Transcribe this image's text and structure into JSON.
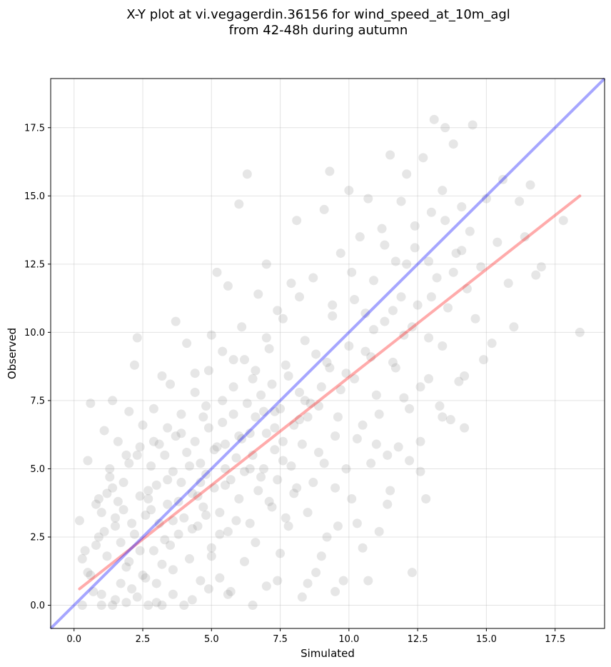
{
  "chart_data": {
    "type": "scatter",
    "title_line1": "X-Y plot at vi.vegagerdin.36156 for wind_speed_at_10m_agl",
    "title_line2": "from 42-48h during autumn",
    "xlabel": "Simulated",
    "ylabel": "Observed",
    "xlim": [
      -0.85,
      19.3
    ],
    "ylim": [
      -0.85,
      19.3
    ],
    "xticks": [
      0.0,
      2.5,
      5.0,
      7.5,
      10.0,
      12.5,
      15.0,
      17.5
    ],
    "yticks": [
      0.0,
      2.5,
      5.0,
      7.5,
      10.0,
      12.5,
      15.0,
      17.5
    ],
    "xtick_labels": [
      "0.0",
      "2.5",
      "5.0",
      "7.5",
      "10.0",
      "12.5",
      "15.0",
      "17.5"
    ],
    "ytick_labels": [
      "0.0",
      "2.5",
      "5.0",
      "7.5",
      "10.0",
      "12.5",
      "15.0",
      "17.5"
    ],
    "grid": true,
    "point_color": "#808080",
    "identity_line_color": "#0000ff",
    "fit_line_color": "#ff0000",
    "identity_line": {
      "x": [
        -0.85,
        19.3
      ],
      "y": [
        -0.85,
        19.3
      ]
    },
    "fit_line": {
      "x": [
        0.2,
        18.4
      ],
      "y": [
        0.6,
        15.0
      ]
    },
    "points": [
      [
        0.2,
        3.1
      ],
      [
        0.3,
        1.7
      ],
      [
        0.4,
        2.0
      ],
      [
        0.5,
        5.3
      ],
      [
        0.6,
        7.4
      ],
      [
        0.6,
        1.1
      ],
      [
        0.8,
        3.7
      ],
      [
        0.9,
        2.5
      ],
      [
        1.0,
        0.4
      ],
      [
        1.1,
        6.4
      ],
      [
        1.2,
        4.1
      ],
      [
        1.3,
        5.0
      ],
      [
        1.4,
        7.5
      ],
      [
        1.5,
        0.2
      ],
      [
        1.5,
        3.2
      ],
      [
        1.6,
        6.0
      ],
      [
        1.7,
        2.3
      ],
      [
        1.8,
        4.5
      ],
      [
        1.9,
        1.4
      ],
      [
        2.0,
        7.1
      ],
      [
        2.1,
        3.0
      ],
      [
        2.2,
        8.8
      ],
      [
        2.3,
        5.5
      ],
      [
        2.3,
        9.8
      ],
      [
        2.4,
        2.0
      ],
      [
        2.5,
        6.6
      ],
      [
        2.6,
        1.0
      ],
      [
        2.7,
        4.2
      ],
      [
        2.8,
        3.5
      ],
      [
        2.9,
        7.2
      ],
      [
        3.0,
        0.8
      ],
      [
        3.1,
        5.9
      ],
      [
        3.2,
        8.4
      ],
      [
        3.3,
        2.4
      ],
      [
        3.4,
        4.6
      ],
      [
        3.5,
        8.1
      ],
      [
        3.6,
        1.3
      ],
      [
        3.7,
        10.4
      ],
      [
        3.8,
        3.8
      ],
      [
        3.9,
        6.3
      ],
      [
        4.0,
        0.0
      ],
      [
        4.1,
        9.6
      ],
      [
        4.2,
        5.1
      ],
      [
        4.3,
        2.8
      ],
      [
        4.4,
        7.8
      ],
      [
        4.5,
        4.0
      ],
      [
        4.6,
        0.9
      ],
      [
        4.7,
        6.9
      ],
      [
        4.8,
        3.3
      ],
      [
        4.9,
        8.6
      ],
      [
        5.0,
        1.8
      ],
      [
        5.0,
        9.9
      ],
      [
        5.1,
        5.7
      ],
      [
        5.2,
        12.2
      ],
      [
        5.3,
        2.6
      ],
      [
        5.4,
        7.5
      ],
      [
        5.5,
        4.4
      ],
      [
        5.6,
        11.7
      ],
      [
        5.7,
        0.5
      ],
      [
        5.8,
        9.0
      ],
      [
        5.9,
        3.1
      ],
      [
        6.0,
        6.2
      ],
      [
        6.0,
        14.7
      ],
      [
        6.1,
        10.2
      ],
      [
        6.2,
        1.6
      ],
      [
        6.3,
        15.8
      ],
      [
        6.4,
        5.0
      ],
      [
        6.5,
        8.3
      ],
      [
        6.6,
        2.3
      ],
      [
        6.7,
        11.4
      ],
      [
        6.8,
        4.7
      ],
      [
        6.9,
        7.1
      ],
      [
        7.0,
        0.7
      ],
      [
        7.0,
        12.5
      ],
      [
        7.1,
        9.4
      ],
      [
        7.2,
        3.6
      ],
      [
        7.3,
        6.5
      ],
      [
        7.4,
        10.8
      ],
      [
        7.5,
        1.9
      ],
      [
        7.6,
        5.3
      ],
      [
        7.7,
        8.8
      ],
      [
        7.8,
        2.9
      ],
      [
        7.9,
        11.8
      ],
      [
        8.0,
        4.1
      ],
      [
        8.1,
        14.1
      ],
      [
        8.2,
        6.8
      ],
      [
        8.3,
        0.3
      ],
      [
        8.4,
        9.7
      ],
      [
        8.5,
        3.4
      ],
      [
        8.6,
        7.4
      ],
      [
        8.7,
        12.0
      ],
      [
        8.8,
        1.2
      ],
      [
        8.9,
        5.6
      ],
      [
        9.0,
        8.0
      ],
      [
        9.1,
        14.5
      ],
      [
        9.2,
        2.5
      ],
      [
        9.3,
        15.9
      ],
      [
        9.4,
        10.6
      ],
      [
        9.5,
        4.3
      ],
      [
        9.6,
        6.9
      ],
      [
        9.7,
        12.9
      ],
      [
        9.8,
        0.9
      ],
      [
        9.9,
        8.5
      ],
      [
        10.0,
        15.2
      ],
      [
        10.1,
        3.9
      ],
      [
        10.2,
        11.2
      ],
      [
        10.3,
        6.1
      ],
      [
        10.4,
        13.5
      ],
      [
        10.5,
        2.1
      ],
      [
        10.6,
        9.3
      ],
      [
        10.7,
        14.9
      ],
      [
        10.8,
        5.2
      ],
      [
        10.9,
        11.9
      ],
      [
        11.0,
        7.7
      ],
      [
        11.1,
        2.7
      ],
      [
        11.2,
        13.8
      ],
      [
        11.3,
        10.4
      ],
      [
        11.4,
        3.7
      ],
      [
        11.5,
        16.5
      ],
      [
        11.6,
        8.9
      ],
      [
        11.7,
        12.6
      ],
      [
        11.8,
        5.8
      ],
      [
        11.9,
        14.8
      ],
      [
        12.0,
        9.9
      ],
      [
        12.1,
        15.8
      ],
      [
        12.2,
        7.2
      ],
      [
        12.3,
        1.2
      ],
      [
        12.4,
        13.1
      ],
      [
        12.5,
        11.0
      ],
      [
        12.6,
        6.0
      ],
      [
        12.7,
        16.4
      ],
      [
        12.8,
        3.9
      ],
      [
        12.9,
        9.8
      ],
      [
        13.0,
        14.4
      ],
      [
        13.1,
        17.8
      ],
      [
        13.2,
        12.0
      ],
      [
        13.3,
        7.3
      ],
      [
        13.4,
        15.2
      ],
      [
        13.5,
        17.5
      ],
      [
        13.6,
        10.9
      ],
      [
        13.7,
        6.8
      ],
      [
        13.8,
        16.9
      ],
      [
        13.9,
        12.9
      ],
      [
        14.0,
        8.2
      ],
      [
        14.1,
        14.6
      ],
      [
        14.2,
        6.5
      ],
      [
        14.3,
        11.6
      ],
      [
        14.4,
        13.7
      ],
      [
        14.5,
        17.6
      ],
      [
        14.6,
        10.5
      ],
      [
        14.8,
        12.4
      ],
      [
        14.9,
        9.0
      ],
      [
        15.0,
        14.9
      ],
      [
        15.2,
        9.6
      ],
      [
        15.4,
        13.3
      ],
      [
        15.6,
        15.6
      ],
      [
        15.8,
        11.8
      ],
      [
        16.0,
        10.2
      ],
      [
        16.2,
        14.8
      ],
      [
        16.4,
        13.5
      ],
      [
        16.6,
        15.4
      ],
      [
        16.8,
        12.1
      ],
      [
        17.0,
        12.4
      ],
      [
        17.8,
        14.1
      ],
      [
        18.4,
        10.0
      ],
      [
        0.5,
        1.2
      ],
      [
        0.8,
        2.2
      ],
      [
        1.0,
        3.4
      ],
      [
        1.2,
        1.8
      ],
      [
        1.3,
        4.7
      ],
      [
        1.5,
        2.9
      ],
      [
        1.7,
        0.8
      ],
      [
        1.8,
        3.5
      ],
      [
        2.0,
        1.6
      ],
      [
        2.0,
        5.2
      ],
      [
        2.2,
        2.6
      ],
      [
        2.4,
        4.0
      ],
      [
        2.5,
        1.1
      ],
      [
        2.6,
        3.3
      ],
      [
        2.8,
        5.1
      ],
      [
        2.9,
        2.0
      ],
      [
        3.0,
        4.4
      ],
      [
        3.1,
        3.0
      ],
      [
        3.2,
        1.5
      ],
      [
        3.3,
        5.5
      ],
      [
        3.4,
        3.7
      ],
      [
        3.5,
        2.2
      ],
      [
        3.6,
        4.9
      ],
      [
        3.7,
        6.2
      ],
      [
        3.8,
        2.6
      ],
      [
        3.9,
        4.5
      ],
      [
        4.0,
        3.2
      ],
      [
        4.1,
        5.6
      ],
      [
        4.2,
        1.7
      ],
      [
        4.3,
        4.1
      ],
      [
        4.4,
        6.0
      ],
      [
        4.5,
        2.9
      ],
      [
        4.6,
        5.2
      ],
      [
        4.7,
        3.6
      ],
      [
        4.8,
        4.8
      ],
      [
        4.9,
        6.5
      ],
      [
        5.0,
        2.1
      ],
      [
        5.1,
        4.3
      ],
      [
        5.2,
        5.8
      ],
      [
        5.3,
        3.4
      ],
      [
        5.4,
        6.7
      ],
      [
        5.5,
        5.0
      ],
      [
        5.6,
        2.7
      ],
      [
        5.7,
        4.6
      ],
      [
        5.8,
        7.0
      ],
      [
        5.9,
        5.4
      ],
      [
        6.0,
        3.9
      ],
      [
        6.1,
        6.1
      ],
      [
        6.2,
        4.9
      ],
      [
        6.3,
        7.4
      ],
      [
        6.4,
        3.0
      ],
      [
        6.5,
        5.5
      ],
      [
        6.6,
        6.9
      ],
      [
        6.7,
        4.2
      ],
      [
        6.8,
        7.7
      ],
      [
        6.9,
        5.0
      ],
      [
        7.0,
        6.3
      ],
      [
        7.1,
        3.8
      ],
      [
        7.2,
        8.1
      ],
      [
        7.3,
        5.7
      ],
      [
        7.4,
        4.6
      ],
      [
        7.5,
        7.2
      ],
      [
        7.6,
        6.0
      ],
      [
        7.7,
        3.2
      ],
      [
        7.8,
        8.4
      ],
      [
        7.9,
        5.1
      ],
      [
        8.0,
        6.6
      ],
      [
        8.1,
        4.3
      ],
      [
        8.2,
        7.8
      ],
      [
        8.3,
        5.9
      ],
      [
        8.5,
        6.9
      ],
      [
        8.7,
        4.5
      ],
      [
        8.9,
        7.3
      ],
      [
        9.1,
        5.2
      ],
      [
        9.3,
        8.7
      ],
      [
        9.5,
        6.2
      ],
      [
        9.7,
        7.9
      ],
      [
        9.9,
        5.0
      ],
      [
        10.2,
        8.3
      ],
      [
        10.5,
        6.6
      ],
      [
        10.8,
        9.1
      ],
      [
        11.1,
        7.0
      ],
      [
        11.4,
        5.5
      ],
      [
        11.7,
        8.7
      ],
      [
        12.0,
        7.6
      ],
      [
        12.3,
        10.2
      ],
      [
        12.6,
        8.0
      ],
      [
        13.0,
        11.3
      ],
      [
        13.4,
        9.5
      ],
      [
        13.8,
        12.2
      ],
      [
        1.0,
        0.0
      ],
      [
        1.4,
        0.0
      ],
      [
        1.9,
        0.1
      ],
      [
        2.3,
        0.3
      ],
      [
        2.7,
        0.0
      ],
      [
        3.2,
        0.0
      ],
      [
        3.6,
        0.4
      ],
      [
        4.3,
        0.2
      ],
      [
        4.9,
        0.6
      ],
      [
        5.6,
        0.4
      ],
      [
        6.5,
        0.0
      ],
      [
        7.4,
        0.9
      ],
      [
        8.5,
        0.8
      ],
      [
        9.5,
        0.5
      ],
      [
        10.7,
        0.9
      ],
      [
        0.3,
        0.0
      ],
      [
        0.7,
        0.5
      ],
      [
        2.1,
        0.6
      ],
      [
        3.0,
        0.1
      ],
      [
        5.3,
        1.0
      ],
      [
        11.5,
        4.2
      ],
      [
        12.2,
        5.3
      ],
      [
        12.9,
        8.3
      ],
      [
        13.4,
        6.9
      ],
      [
        14.2,
        8.4
      ],
      [
        10.3,
        3.0
      ],
      [
        9.0,
        1.8
      ],
      [
        9.6,
        2.9
      ],
      [
        11.0,
        5.9
      ],
      [
        12.6,
        4.9
      ],
      [
        8.8,
        9.2
      ],
      [
        9.4,
        11.0
      ],
      [
        10.1,
        12.2
      ],
      [
        10.6,
        10.7
      ],
      [
        11.3,
        13.2
      ],
      [
        11.9,
        11.3
      ],
      [
        12.4,
        13.9
      ],
      [
        12.9,
        12.6
      ],
      [
        13.5,
        14.1
      ],
      [
        14.1,
        13.0
      ],
      [
        7.0,
        9.8
      ],
      [
        7.6,
        10.5
      ],
      [
        8.2,
        11.3
      ],
      [
        6.6,
        8.6
      ],
      [
        6.2,
        9.0
      ],
      [
        5.8,
        8.0
      ],
      [
        5.4,
        9.3
      ],
      [
        4.8,
        7.3
      ],
      [
        4.4,
        8.5
      ],
      [
        3.9,
        7.0
      ],
      [
        3.4,
        6.5
      ],
      [
        2.9,
        6.0
      ],
      [
        2.4,
        5.8
      ],
      [
        1.9,
        5.5
      ],
      [
        1.4,
        4.3
      ],
      [
        0.9,
        3.9
      ],
      [
        1.1,
        2.7
      ],
      [
        1.6,
        3.8
      ],
      [
        2.7,
        3.9
      ],
      [
        3.6,
        3.1
      ],
      [
        4.6,
        4.5
      ],
      [
        5.5,
        5.9
      ],
      [
        6.4,
        6.3
      ],
      [
        7.3,
        7.1
      ],
      [
        8.4,
        7.5
      ],
      [
        9.2,
        8.9
      ],
      [
        10.0,
        9.5
      ],
      [
        10.9,
        10.1
      ],
      [
        11.6,
        10.8
      ],
      [
        12.1,
        12.5
      ]
    ]
  }
}
